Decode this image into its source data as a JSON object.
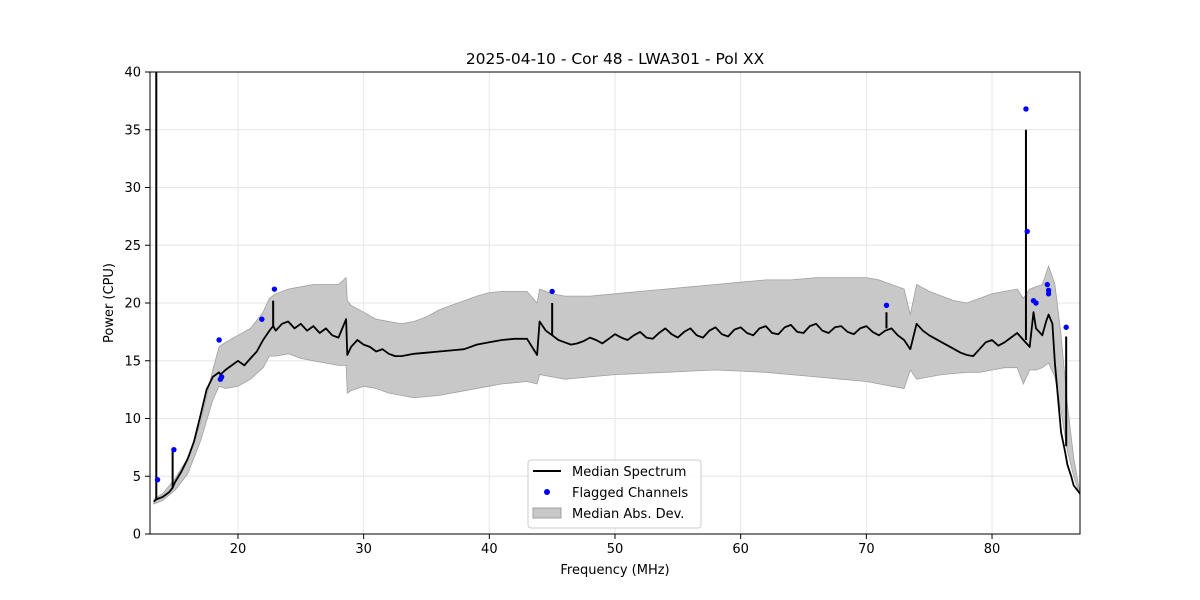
{
  "chart_data": {
    "type": "line",
    "title": "2025-04-10 - Cor 48 - LWA301 - Pol XX",
    "xlabel": "Frequency (MHz)",
    "ylabel": "Power (CPU)",
    "xlim": [
      13,
      87
    ],
    "ylim": [
      0,
      40
    ],
    "x_ticks": [
      20,
      30,
      40,
      50,
      60,
      70,
      80
    ],
    "y_ticks": [
      0,
      5,
      10,
      15,
      20,
      25,
      30,
      35,
      40
    ],
    "x_tick_labels": [
      "20",
      "30",
      "40",
      "50",
      "60",
      "70",
      "80"
    ],
    "y_tick_labels": [
      "0",
      "5",
      "10",
      "15",
      "20",
      "25",
      "30",
      "35",
      "40"
    ],
    "grid": true,
    "legend_position": "bottom-center",
    "legend": [
      "Median Spectrum",
      "Flagged Channels",
      "Median Abs. Dev."
    ],
    "colors": {
      "median": "#000000",
      "flagged": "#0000ff",
      "mad_fill": "#c8c8c8",
      "mad_edge": "#a0a0a0",
      "grid": "#e6e6e6"
    },
    "median_spectrum": {
      "x": [
        13.3,
        13.5,
        14,
        14.5,
        14.8,
        15,
        15.5,
        16,
        16.5,
        17,
        17.5,
        18,
        18.5,
        18.6,
        19,
        19.5,
        20,
        20.5,
        21,
        21.5,
        22,
        22.5,
        22.8,
        23,
        23.5,
        24,
        24.5,
        25,
        25.5,
        26,
        26.5,
        27,
        27.5,
        28,
        28.6,
        28.7,
        29,
        29.5,
        30,
        30.5,
        31,
        31.5,
        32,
        32.5,
        33,
        33.5,
        34,
        35,
        36,
        37,
        38,
        39,
        40,
        41,
        42,
        43,
        43.8,
        44,
        44.5,
        45,
        45.5,
        46,
        46.5,
        47,
        47.5,
        48,
        48.5,
        49,
        49.5,
        50,
        50.5,
        51,
        51.5,
        52,
        52.5,
        53,
        53.5,
        54,
        54.5,
        55,
        55.5,
        56,
        56.5,
        57,
        57.5,
        58,
        58.5,
        59,
        59.5,
        60,
        60.5,
        61,
        61.5,
        62,
        62.5,
        63,
        63.5,
        64,
        64.5,
        65,
        65.5,
        66,
        66.5,
        67,
        67.5,
        68,
        68.5,
        69,
        69.5,
        70,
        70.5,
        71,
        71.5,
        72,
        72.5,
        73,
        73.5,
        74,
        74.5,
        75,
        75.5,
        76,
        76.5,
        77,
        77.5,
        78,
        78.5,
        79,
        79.5,
        80,
        80.5,
        81,
        81.5,
        82,
        82.5,
        83,
        83.3,
        83.5,
        84,
        84.3,
        84.5,
        84.8,
        85,
        85.3,
        85.5,
        85.8,
        86,
        86.3,
        86.5,
        87
      ],
      "y": [
        2.8,
        3.0,
        3.2,
        3.6,
        4.0,
        4.5,
        5.4,
        6.5,
        8.0,
        10.2,
        12.5,
        13.6,
        14.0,
        13.8,
        14.2,
        14.6,
        15.0,
        14.6,
        15.2,
        15.8,
        16.8,
        17.6,
        18.0,
        17.6,
        18.2,
        18.4,
        17.8,
        18.2,
        17.6,
        18.0,
        17.4,
        17.8,
        17.2,
        17.0,
        18.6,
        15.5,
        16.2,
        16.8,
        16.4,
        16.2,
        15.8,
        16.0,
        15.6,
        15.4,
        15.4,
        15.5,
        15.6,
        15.7,
        15.8,
        15.9,
        16.0,
        16.4,
        16.6,
        16.8,
        16.9,
        16.9,
        15.5,
        18.4,
        17.6,
        17.2,
        16.8,
        16.6,
        16.4,
        16.5,
        16.7,
        17.0,
        16.8,
        16.5,
        16.9,
        17.3,
        17.0,
        16.8,
        17.2,
        17.5,
        17.0,
        16.9,
        17.4,
        17.8,
        17.3,
        17.0,
        17.5,
        17.8,
        17.2,
        17.0,
        17.6,
        17.9,
        17.3,
        17.1,
        17.7,
        17.9,
        17.4,
        17.2,
        17.8,
        18.0,
        17.4,
        17.3,
        17.9,
        18.1,
        17.5,
        17.4,
        18.0,
        18.2,
        17.6,
        17.4,
        17.9,
        18.0,
        17.5,
        17.3,
        17.8,
        18.0,
        17.5,
        17.2,
        17.6,
        17.8,
        17.2,
        16.8,
        16.0,
        18.2,
        17.6,
        17.2,
        16.9,
        16.6,
        16.3,
        16.0,
        15.7,
        15.5,
        15.4,
        16.0,
        16.6,
        16.8,
        16.3,
        16.6,
        17.0,
        17.4,
        16.8,
        16.2,
        19.2,
        17.8,
        17.2,
        18.4,
        19.0,
        18.2,
        14.8,
        11.2,
        8.8,
        7.2,
        6.0,
        5.0,
        4.2,
        3.5
      ],
      "spikes": [
        {
          "x": 13.5,
          "base": 3.0,
          "peak": 40.0
        },
        {
          "x": 14.8,
          "base": 4.0,
          "peak": 7.2
        },
        {
          "x": 22.8,
          "base": 18.0,
          "peak": 20.2
        },
        {
          "x": 45.0,
          "base": 17.2,
          "peak": 20.0
        },
        {
          "x": 71.6,
          "base": 17.8,
          "peak": 19.2
        },
        {
          "x": 82.7,
          "base": 16.8,
          "peak": 35.0
        },
        {
          "x": 85.9,
          "base": 7.6,
          "peak": 17.1
        }
      ]
    },
    "mad_band": {
      "x": [
        13.3,
        14,
        15,
        16,
        17,
        18,
        18.5,
        19,
        20,
        21,
        22,
        22.5,
        23,
        24,
        25,
        26,
        27,
        28,
        28.6,
        28.7,
        29,
        30,
        31,
        32,
        33,
        34,
        35,
        36,
        37,
        38,
        39,
        40,
        41,
        42,
        43,
        43.8,
        44,
        45,
        46,
        48,
        50,
        52,
        54,
        56,
        58,
        60,
        62,
        64,
        66,
        68,
        70,
        71,
        72,
        73,
        73.5,
        74,
        75,
        76,
        77,
        78,
        79,
        80,
        81,
        82,
        82.5,
        83,
        83.5,
        84,
        84.5,
        85,
        85.5,
        86,
        86.5,
        87
      ],
      "upper": [
        3.0,
        3.5,
        4.8,
        6.6,
        9.6,
        14.2,
        16.2,
        16.6,
        17.2,
        17.8,
        19.2,
        20.4,
        20.8,
        21.2,
        21.4,
        21.6,
        21.6,
        21.6,
        22.2,
        20.2,
        19.8,
        19.2,
        18.6,
        18.4,
        18.2,
        18.4,
        18.8,
        19.4,
        19.8,
        20.2,
        20.6,
        20.9,
        21.0,
        21.0,
        21.0,
        20.0,
        21.2,
        20.8,
        20.6,
        20.6,
        20.8,
        21.0,
        21.2,
        21.4,
        21.6,
        21.8,
        22.0,
        22.0,
        22.2,
        22.2,
        22.2,
        22.0,
        21.6,
        21.2,
        19.0,
        21.6,
        21.0,
        20.6,
        20.2,
        20.0,
        20.4,
        20.8,
        21.0,
        21.2,
        20.4,
        21.2,
        21.4,
        21.6,
        23.2,
        21.6,
        17.2,
        11.2,
        6.6,
        3.5
      ],
      "lower": [
        2.6,
        2.9,
        3.8,
        5.2,
        8.0,
        11.6,
        12.8,
        12.6,
        12.8,
        13.4,
        14.4,
        15.4,
        15.4,
        15.6,
        15.2,
        15.0,
        14.8,
        14.6,
        14.6,
        12.2,
        12.4,
        12.8,
        12.6,
        12.2,
        12.0,
        11.8,
        11.9,
        12.0,
        12.2,
        12.4,
        12.6,
        12.8,
        13.0,
        13.1,
        13.2,
        13.0,
        13.8,
        13.6,
        13.4,
        13.6,
        13.8,
        13.9,
        14.0,
        14.1,
        14.2,
        14.1,
        14.0,
        13.8,
        13.6,
        13.4,
        13.2,
        13.0,
        12.8,
        12.6,
        14.2,
        13.4,
        13.6,
        13.8,
        13.9,
        14.0,
        14.0,
        14.2,
        14.4,
        14.4,
        13.0,
        14.2,
        14.2,
        14.4,
        14.8,
        13.6,
        10.6,
        7.2,
        5.0,
        3.3
      ]
    },
    "flagged_channels": {
      "x": [
        13.6,
        14.9,
        18.5,
        18.7,
        18.6,
        21.9,
        22.9,
        45.0,
        71.6,
        82.7,
        82.8,
        83.3,
        83.5,
        84.4,
        84.5,
        84.5,
        85.9
      ],
      "y": [
        4.7,
        7.3,
        16.8,
        13.6,
        13.4,
        18.6,
        21.2,
        21.0,
        19.8,
        36.8,
        26.2,
        20.2,
        20.0,
        21.6,
        21.1,
        20.8,
        17.9
      ]
    }
  }
}
